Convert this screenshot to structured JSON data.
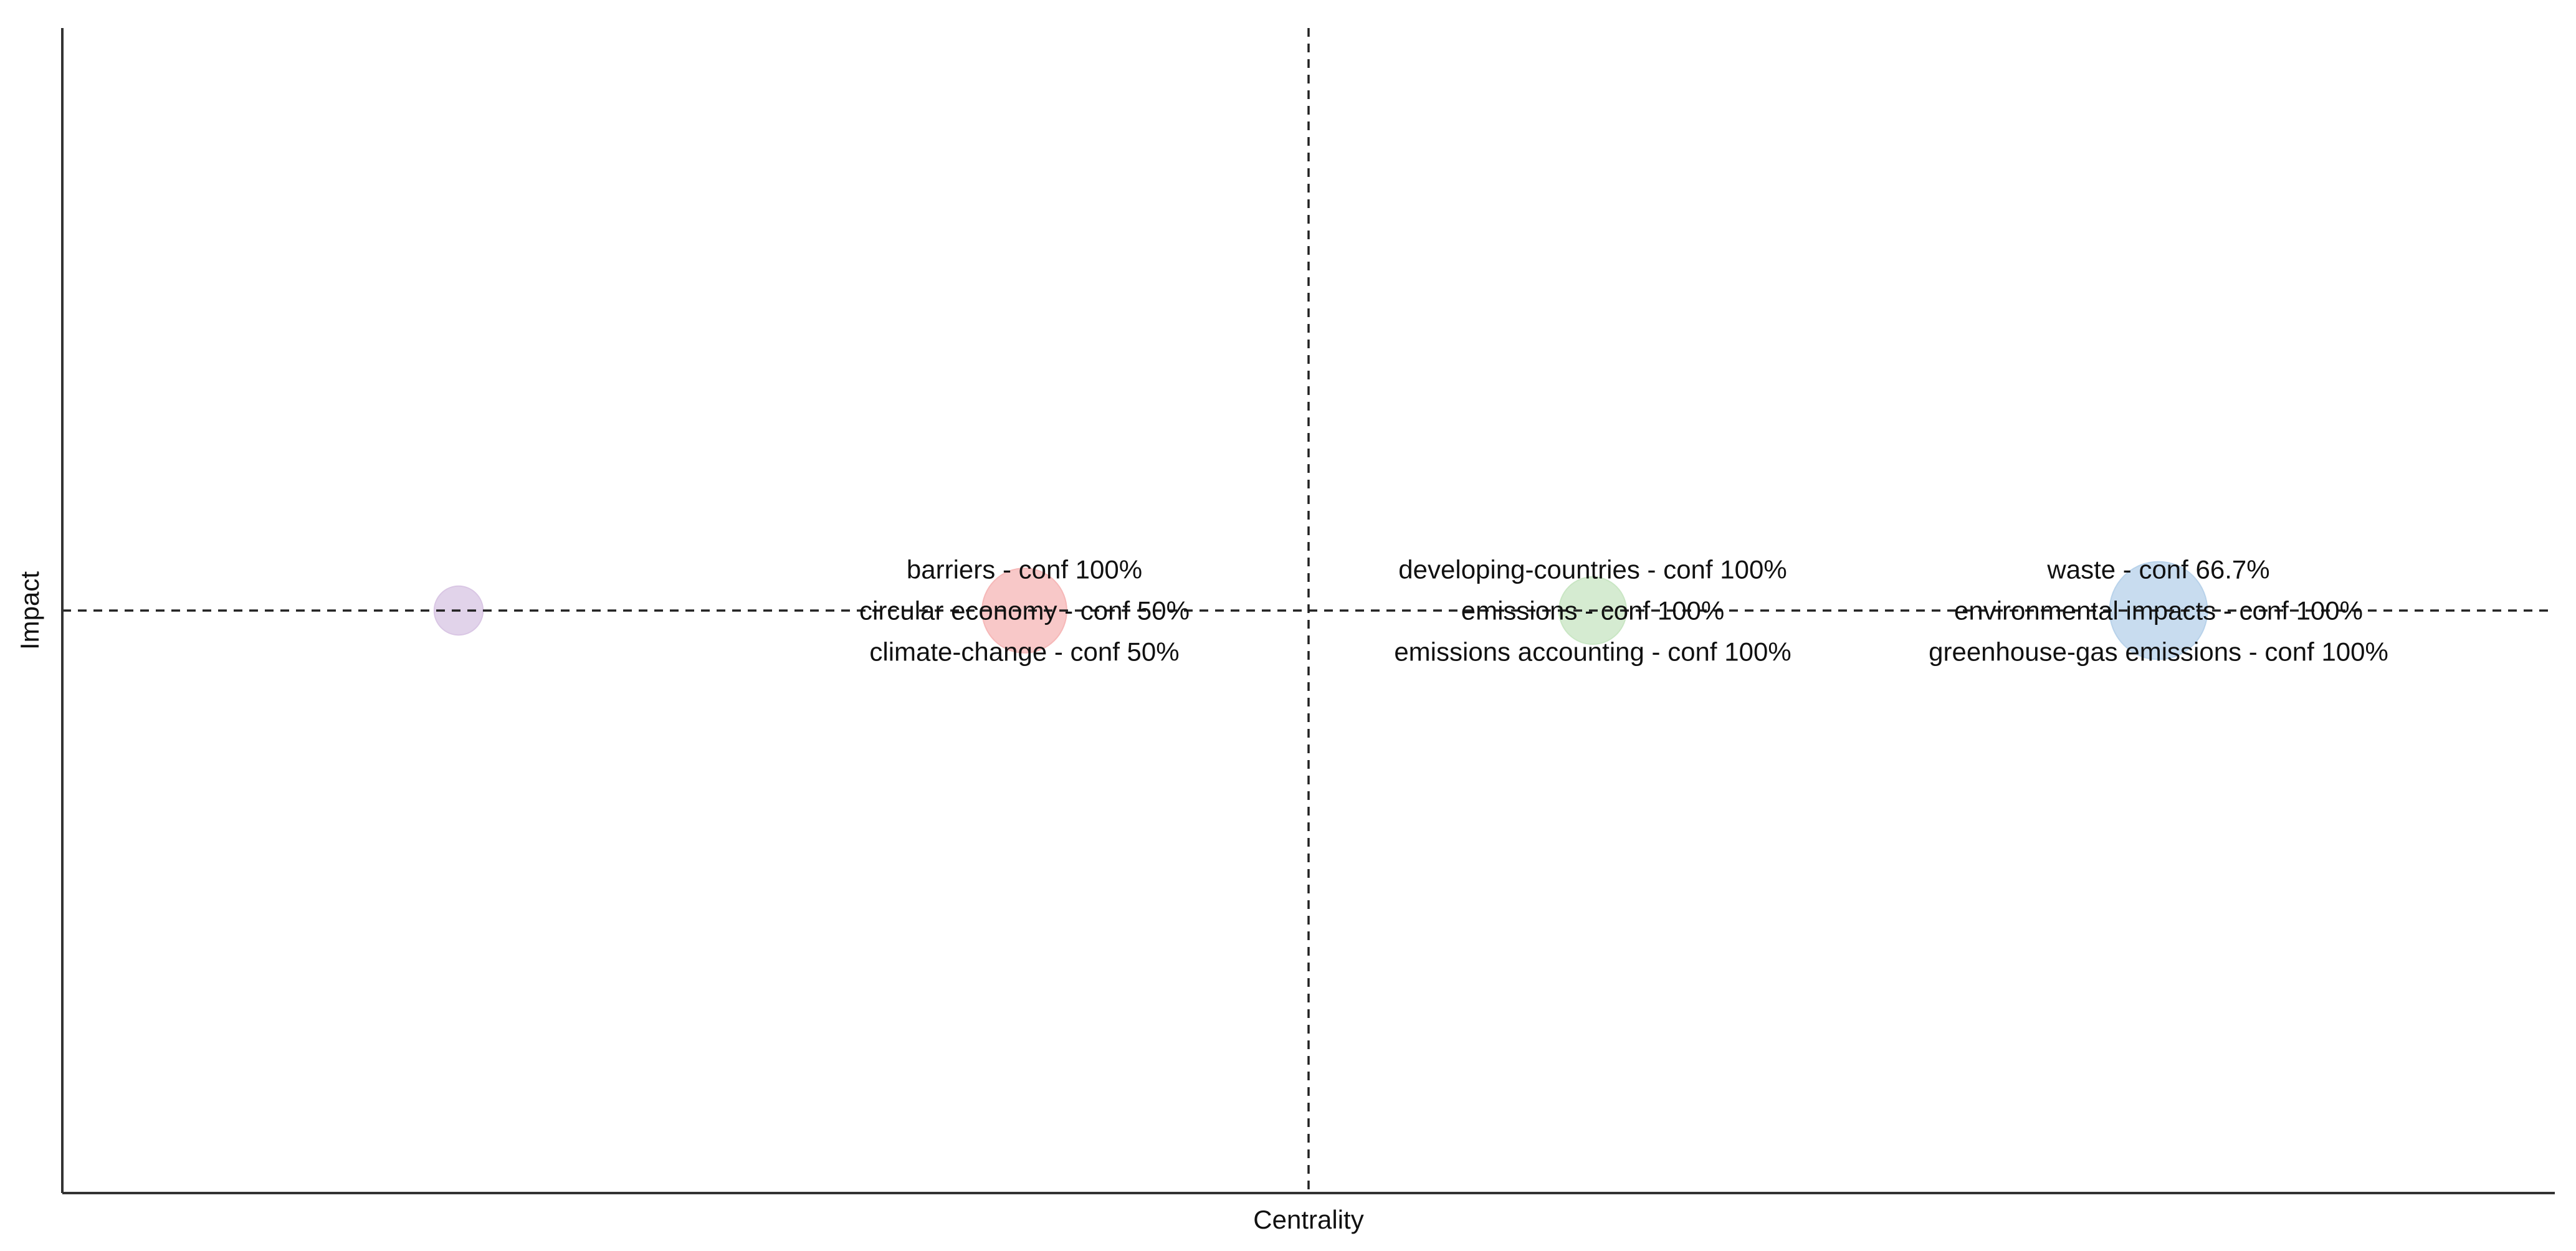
{
  "chart_data": {
    "type": "scatter",
    "title": "",
    "xlabel": "Centrality",
    "ylabel": "Impact",
    "xlim": [
      0,
      1
    ],
    "ylim": [
      0,
      1
    ],
    "grid": false,
    "reference_lines": {
      "x": 0.5,
      "y": 0.5
    },
    "points": [
      {
        "x": 0.159,
        "y": 0.5,
        "size": 1.0,
        "color": "#d9c6e4",
        "labels": []
      },
      {
        "x": 0.386,
        "y": 0.5,
        "size": 3.0,
        "color": "#f6b8b8",
        "labels": [
          "barriers - conf 100%",
          "circular economy - conf 50%",
          "climate-change - conf 50%"
        ]
      },
      {
        "x": 0.614,
        "y": 0.5,
        "size": 1.9,
        "color": "#c9e6c4",
        "labels": [
          "developing-countries - conf 100%",
          "emissions - conf 100%",
          "emissions accounting - conf 100%"
        ]
      },
      {
        "x": 0.841,
        "y": 0.5,
        "size": 4.0,
        "color": "#b8d2ea",
        "labels": [
          "waste - conf 66.7%",
          "environmental impacts - conf 100%",
          "greenhouse-gas emissions - conf 100%"
        ]
      }
    ]
  }
}
